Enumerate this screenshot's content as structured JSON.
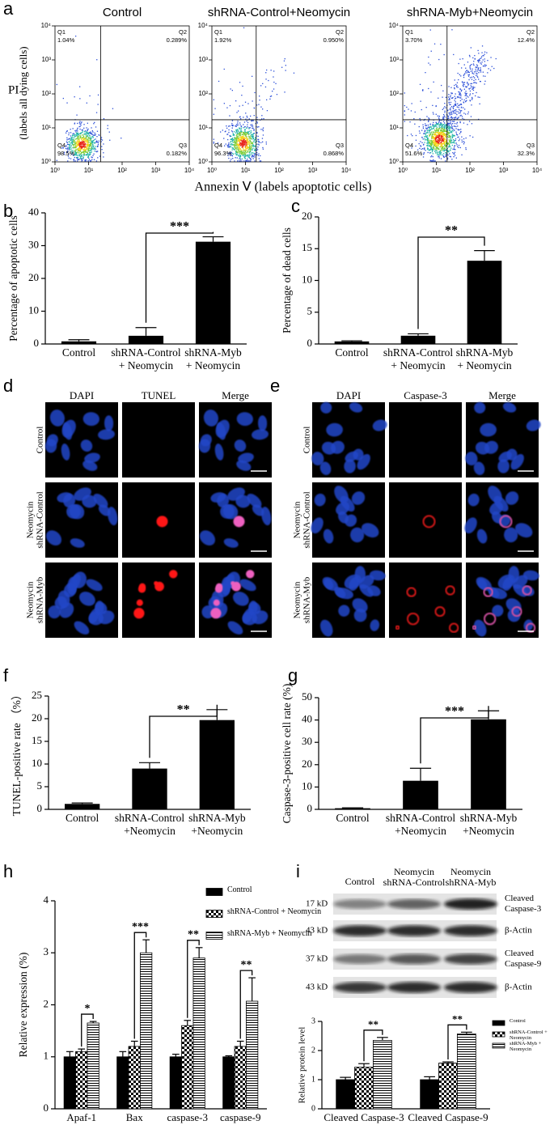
{
  "flow": {
    "label": "a",
    "ylabel": "PI",
    "ylabel_sub": "(labels all dying cells)",
    "xlabel": "Annexin Ⅴ (labels apoptotic cells)",
    "ticks": [
      "10⁰",
      "10¹",
      "10²",
      "10³",
      "10⁴"
    ],
    "plots": [
      {
        "title": "Control",
        "quadrants": [
          {
            "name": "Q1",
            "value": "1.04%"
          },
          {
            "name": "Q2",
            "value": "0.289%"
          },
          {
            "name": "Q3",
            "value": "0.182%"
          },
          {
            "name": "Q4",
            "value": "98.5%"
          }
        ]
      },
      {
        "title": "shRNA-Control+Neomycin",
        "quadrants": [
          {
            "name": "Q1",
            "value": "1.92%"
          },
          {
            "name": "Q2",
            "value": "0.950%"
          },
          {
            "name": "Q3",
            "value": "0.868%"
          },
          {
            "name": "Q4",
            "value": "96.3%"
          }
        ]
      },
      {
        "title": "shRNA-Myb+Neomycin",
        "quadrants": [
          {
            "name": "Q1",
            "value": "3.70%"
          },
          {
            "name": "Q2",
            "value": "12.4%"
          },
          {
            "name": "Q3",
            "value": "32.3%"
          },
          {
            "name": "Q4",
            "value": "51.6%"
          }
        ]
      }
    ]
  },
  "tunel": {
    "label": "d",
    "columns": [
      "DAPI",
      "TUNEL",
      "Merge"
    ],
    "rows": [
      [
        "Control"
      ],
      [
        "Neomycin",
        "shRNA-Control"
      ],
      [
        "Neomycin",
        "shRNA-Myb"
      ]
    ]
  },
  "caspase": {
    "label": "e",
    "columns": [
      "DAPI",
      "Caspase-3",
      "Merge"
    ],
    "rows": [
      [
        "Control"
      ],
      [
        "Neomycin",
        "shRNA-Control"
      ],
      [
        "Neomycin",
        "shRNA-Myb"
      ]
    ]
  },
  "western": {
    "label": "i",
    "lanes": [
      [
        "Control"
      ],
      [
        "Neomycin",
        "shRNA-Control"
      ],
      [
        "Neomycin",
        "shRNA-Myb"
      ]
    ],
    "rows": [
      {
        "size": "17 kD",
        "name": [
          "Cleaved",
          "Caspase-3"
        ]
      },
      {
        "size": "43 kD",
        "name": [
          "β-Actin"
        ]
      },
      {
        "size": "37 kD",
        "name": [
          "Cleaved",
          "Caspase-9"
        ]
      },
      {
        "size": "43 kD",
        "name": [
          "β-Actin"
        ]
      }
    ]
  },
  "chart_data": [
    {
      "type": "bar",
      "label": "b",
      "ylabel": "Percentage of apoptotic cells",
      "categories": [
        [
          "Control"
        ],
        [
          "shRNA-Control",
          "+ Neomycin"
        ],
        [
          "shRNA-Myb",
          "+ Neomycin"
        ]
      ],
      "values": [
        0.8,
        2.5,
        31.2
      ],
      "errors": [
        0.5,
        2.5,
        1.5
      ],
      "color": "#000000",
      "ylim": [
        0,
        40
      ],
      "yticks": [
        0,
        10,
        20,
        30,
        40
      ],
      "annotations": [
        "***"
      ]
    },
    {
      "type": "bar",
      "label": "c",
      "ylabel": "Percentage of dead cells",
      "categories": [
        [
          "Control"
        ],
        [
          "shRNA-Control",
          "+ Neomycin"
        ],
        [
          "shRNA-Myb",
          "+ Neomycin"
        ]
      ],
      "values": [
        0.4,
        1.3,
        13.1
      ],
      "errors": [
        0.1,
        0.3,
        1.6
      ],
      "color": "#000000",
      "ylim": [
        0,
        20
      ],
      "yticks": [
        0,
        5,
        10,
        15,
        20
      ],
      "annotations": [
        "**"
      ]
    },
    {
      "type": "bar",
      "label": "f",
      "ylabel": "TUNEL-positive rate （%）",
      "categories": [
        [
          "Control"
        ],
        [
          "shRNA-Control",
          "+Neomycin"
        ],
        [
          "shRNA-Myb",
          "+Neomycin"
        ]
      ],
      "values": [
        1.2,
        9.0,
        19.7
      ],
      "errors": [
        0.2,
        1.3,
        2.3
      ],
      "color": "#000000",
      "ylim": [
        0,
        25
      ],
      "yticks": [
        0,
        5,
        10,
        15,
        20,
        25
      ],
      "annotations": [
        "**"
      ]
    },
    {
      "type": "bar",
      "label": "g",
      "ylabel": "Caspase-3-positive cell rate (%)",
      "categories": [
        [
          "Control"
        ],
        [
          "shRNA-Control",
          "+Neomycin"
        ],
        [
          "shRNA-Myb",
          "+Neomycin"
        ]
      ],
      "values": [
        0.5,
        12.8,
        40.3
      ],
      "errors": [
        0.2,
        5.6,
        3.8
      ],
      "color": "#000000",
      "ylim": [
        0,
        50
      ],
      "yticks": [
        0,
        10,
        20,
        30,
        40,
        50
      ],
      "annotations": [
        "***"
      ]
    },
    {
      "type": "grouped_bar",
      "label": "h",
      "ylabel": "Relative expression (%)",
      "categories": [
        [
          "Apaf-1"
        ],
        [
          "Bax"
        ],
        [
          "caspase-3"
        ],
        [
          "caspase-9"
        ]
      ],
      "series": [
        {
          "name": "Control",
          "color": "#000000",
          "pattern": "solid",
          "values": [
            1.0,
            1.0,
            1.0,
            1.0
          ],
          "errors": [
            0.1,
            0.1,
            0.05,
            0.02
          ]
        },
        {
          "name": "shRNA-Control + Neomycin",
          "color": "#000000",
          "pattern": "checker",
          "values": [
            1.1,
            1.2,
            1.6,
            1.2
          ],
          "errors": [
            0.05,
            0.1,
            0.1,
            0.1
          ]
        },
        {
          "name": "shRNA-Myb + Neomycin",
          "color": "#000000",
          "pattern": "hlines",
          "values": [
            1.65,
            3.0,
            2.9,
            2.07
          ],
          "errors": [
            0.03,
            0.25,
            0.2,
            0.45
          ]
        }
      ],
      "ylim": [
        0,
        4
      ],
      "yticks": [
        0,
        1,
        2,
        3,
        4
      ],
      "annotations": [
        "*",
        "***",
        "**",
        "**"
      ],
      "legend": "upper right"
    },
    {
      "type": "grouped_bar",
      "ylabel": "Relative protein level",
      "categories": [
        [
          "Cleaved Caspase-3"
        ],
        [
          "Cleaved Caspase-9"
        ]
      ],
      "series": [
        {
          "name": "Control",
          "color": "#000000",
          "pattern": "solid",
          "values": [
            1.0,
            1.0
          ],
          "errors": [
            0.08,
            0.1
          ]
        },
        {
          "name": "shRNA-Control + Neomycin",
          "color": "#000000",
          "pattern": "checker",
          "values": [
            1.43,
            1.57
          ],
          "errors": [
            0.12,
            0.04
          ]
        },
        {
          "name": "shRNA-Myb + Neomycin",
          "color": "#000000",
          "pattern": "hlines",
          "values": [
            2.35,
            2.57
          ],
          "errors": [
            0.1,
            0.06
          ]
        }
      ],
      "ylim": [
        0,
        3
      ],
      "yticks": [
        0,
        1,
        2,
        3
      ],
      "annotations": [
        "**",
        "**"
      ],
      "legend": "right"
    }
  ]
}
